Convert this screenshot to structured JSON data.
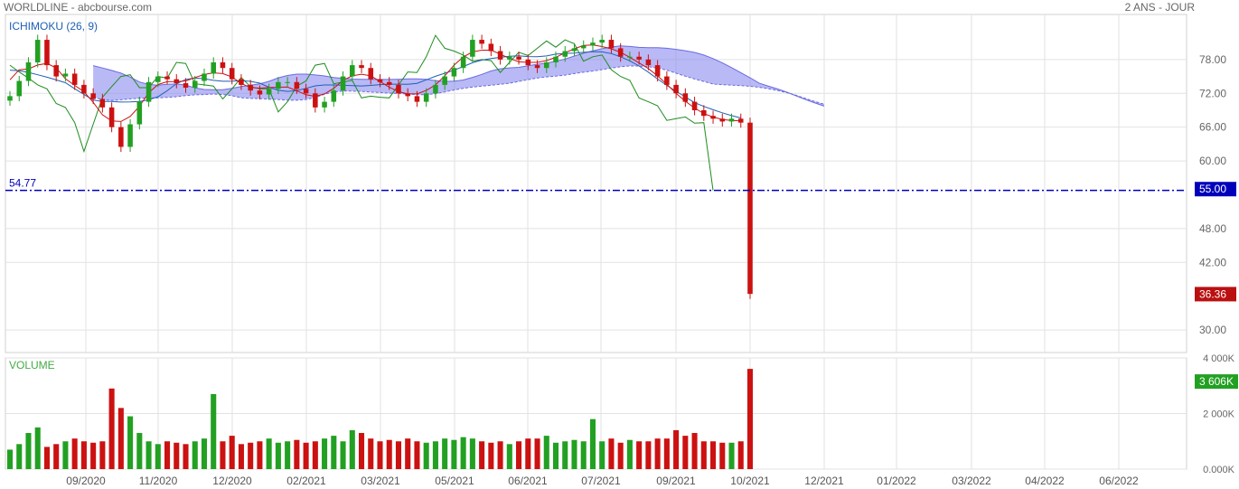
{
  "header": {
    "title": "WORLDLINE - abcbourse.com",
    "period": "2 ANS - JOUR"
  },
  "colors": {
    "up": "#22a022",
    "down": "#cc1111",
    "kijun": "#1e5fb4",
    "tenkan": "#cc1111",
    "chikou": "#1e8c1e",
    "cloud": "#8a8af0",
    "level": "#0000bb",
    "grid": "#e2e2e2"
  },
  "chart_data": [
    {
      "type": "line",
      "title": "ICHIMOKU (26, 9)",
      "ylim": [
        26,
        86
      ],
      "y_ticks": [
        "78.00",
        "72.00",
        "66.00",
        "60.00",
        "55.00",
        "48.00",
        "42.00",
        "36.36",
        "30.00"
      ],
      "x_ticks": [
        "09/2020",
        "11/2020",
        "12/2020",
        "02/2021",
        "03/2021",
        "05/2021",
        "06/2021",
        "07/2021",
        "09/2021",
        "10/2021",
        "12/2021",
        "01/2022",
        "03/2022",
        "04/2022",
        "06/2022"
      ],
      "horizontal_line": {
        "value": 54.77,
        "label": "54.77",
        "axis_label": "55.00"
      },
      "last_price_label": "36.36",
      "series": [
        {
          "values": [
            71.5,
            74.2,
            77.5,
            81.5,
            77.0,
            75.0,
            75.5,
            73.5,
            72.0,
            71.0,
            69.5,
            66.0,
            62.5,
            66.5,
            70.5,
            74.0,
            75.0,
            74.5,
            73.8,
            73.0,
            74.2,
            75.5,
            77.5,
            76.5,
            74.5,
            73.5,
            72.5,
            71.8,
            72.8,
            74.0,
            74.0,
            72.8,
            72.0,
            69.5,
            70.5,
            72.5,
            75.0,
            77.0,
            76.5,
            74.5,
            74.0,
            73.5,
            72.0,
            71.5,
            70.5,
            72.0,
            73.5,
            75.0,
            76.5,
            78.5,
            81.5,
            80.8,
            79.5,
            78.0,
            78.5,
            78.0,
            77.0,
            76.5,
            77.5,
            78.5,
            79.5,
            80.0,
            80.5,
            81.0,
            81.5,
            80.0,
            78.5,
            78.5,
            78.0,
            77.0,
            75.0,
            73.5,
            72.0,
            70.5,
            69.0,
            68.0,
            67.5,
            67.0,
            67.5,
            66.8,
            36.4
          ]
        }
      ]
    },
    {
      "type": "bar",
      "title": "VOLUME",
      "ylim": [
        0,
        4000
      ],
      "y_ticks": [
        "0.000K",
        "2 000K",
        "4 000K"
      ],
      "last_value_label": "3 606K",
      "values": [
        700,
        900,
        1300,
        1500,
        800,
        900,
        1000,
        1100,
        1000,
        950,
        1000,
        2900,
        2200,
        1900,
        1300,
        1000,
        900,
        1000,
        950,
        900,
        1000,
        1100,
        2700,
        1000,
        1200,
        900,
        950,
        1000,
        1100,
        950,
        1000,
        1050,
        950,
        1000,
        1100,
        1200,
        1000,
        1400,
        1300,
        1100,
        1000,
        1050,
        1000,
        1100,
        1000,
        950,
        1000,
        1100,
        1050,
        1150,
        1100,
        1000,
        950,
        1000,
        900,
        1000,
        1100,
        1100,
        1200,
        950,
        1000,
        1050,
        1000,
        1800,
        1000,
        1100,
        950,
        1050,
        1000,
        1000,
        1100,
        1100,
        1400,
        1200,
        1300,
        1000,
        1000,
        950,
        950,
        1000,
        3606
      ]
    }
  ]
}
